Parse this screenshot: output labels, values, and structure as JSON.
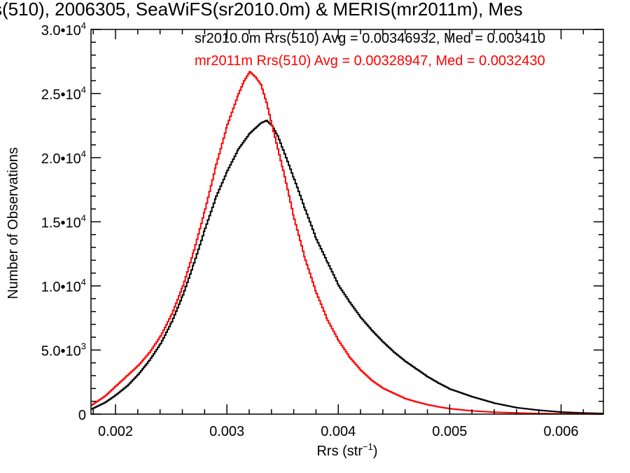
{
  "chart_data": {
    "type": "line",
    "title": "s(510), 2006305, SeaWiFS(sr2010.0m) & MERIS(mr2011m), Mes",
    "xlabel": "Rrs (str",
    "xlabel_sup": "−1",
    "xlabel_close": ")",
    "ylabel": "Number of Observations",
    "xlim": [
      0.00178,
      0.00638
    ],
    "ylim": [
      0,
      30000
    ],
    "xticks": [
      0.002,
      0.003,
      0.004,
      0.005,
      0.006
    ],
    "xtick_labels": [
      "0.002",
      "0.003",
      "0.004",
      "0.005",
      "0.006"
    ],
    "yticks": [
      0,
      5000,
      10000,
      15000,
      20000,
      25000,
      30000
    ],
    "ytick_labels": [
      {
        "mant": "0",
        "exp": ""
      },
      {
        "mant": "5.0•10",
        "exp": "3"
      },
      {
        "mant": "1.0•10",
        "exp": "4"
      },
      {
        "mant": "1.5•10",
        "exp": "4"
      },
      {
        "mant": "2.0•10",
        "exp": "4"
      },
      {
        "mant": "2.5•10",
        "exp": "4"
      },
      {
        "mant": "3.0•10",
        "exp": "4"
      }
    ],
    "series": [
      {
        "name": "sr2010.0m Rrs(510) Avg = 0.00346932, Med = 0.003410",
        "color": "#000000",
        "x": [
          0.00178,
          0.0019,
          0.002,
          0.0021,
          0.0022,
          0.0023,
          0.0024,
          0.0025,
          0.0026,
          0.0027,
          0.0028,
          0.0029,
          0.003,
          0.0031,
          0.0032,
          0.00325,
          0.0033,
          0.00335,
          0.0034,
          0.00345,
          0.0035,
          0.0036,
          0.0037,
          0.0038,
          0.0039,
          0.004,
          0.0041,
          0.0042,
          0.0043,
          0.0044,
          0.0045,
          0.0046,
          0.0047,
          0.0048,
          0.0049,
          0.005,
          0.0052,
          0.0054,
          0.0056,
          0.0058,
          0.006,
          0.0062,
          0.00638
        ],
        "y": [
          400,
          900,
          1500,
          2200,
          3100,
          4200,
          5500,
          7200,
          9300,
          11800,
          14500,
          17000,
          19000,
          20700,
          21900,
          22300,
          22700,
          22900,
          22500,
          21700,
          20600,
          18300,
          15900,
          13600,
          11800,
          10000,
          8700,
          7500,
          6500,
          5600,
          4800,
          4100,
          3500,
          2900,
          2400,
          1950,
          1350,
          850,
          500,
          300,
          160,
          90,
          50
        ]
      },
      {
        "name": "mr2011m Rrs(510) Avg = 0.00328947, Med = 0.0032430",
        "color": "#ff0000",
        "x": [
          0.00178,
          0.0019,
          0.002,
          0.0021,
          0.0022,
          0.0023,
          0.0024,
          0.0025,
          0.0026,
          0.0027,
          0.0028,
          0.0029,
          0.003,
          0.0031,
          0.00315,
          0.0032,
          0.00325,
          0.0033,
          0.00335,
          0.0034,
          0.0035,
          0.0036,
          0.0037,
          0.0038,
          0.0039,
          0.004,
          0.0041,
          0.0042,
          0.0043,
          0.0044,
          0.0045,
          0.0046,
          0.0047,
          0.0048,
          0.0049,
          0.005,
          0.0052,
          0.0054,
          0.0056,
          0.0058,
          0.006,
          0.0062,
          0.00638
        ],
        "y": [
          700,
          1400,
          2200,
          3000,
          3800,
          4800,
          6100,
          7800,
          10000,
          12800,
          16000,
          19500,
          22600,
          25000,
          26000,
          26700,
          26300,
          25700,
          24300,
          22500,
          19000,
          15200,
          12000,
          9400,
          7300,
          5700,
          4400,
          3400,
          2600,
          2000,
          1600,
          1200,
          950,
          730,
          560,
          420,
          250,
          150,
          90,
          50,
          30,
          15,
          8
        ]
      }
    ]
  }
}
